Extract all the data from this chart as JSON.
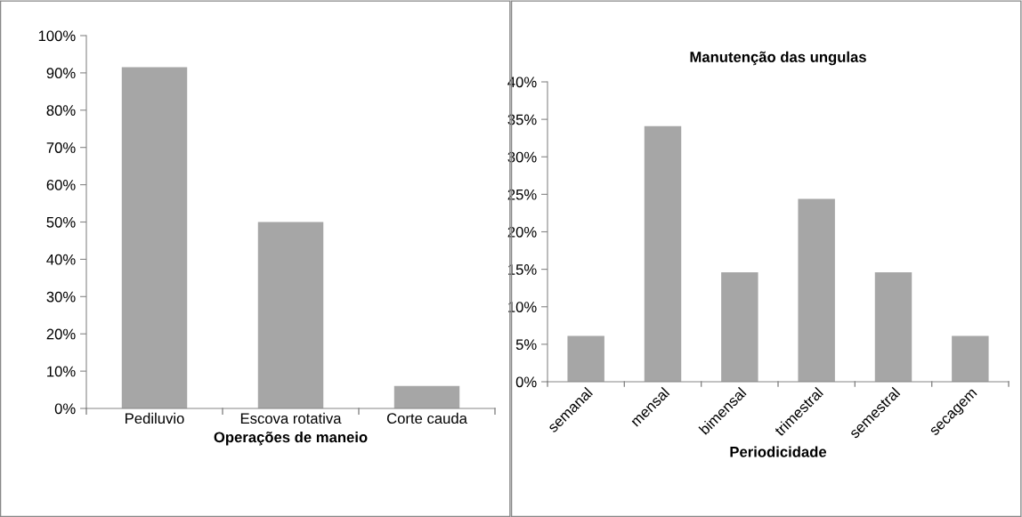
{
  "chart_data": [
    {
      "type": "bar",
      "xlabel": "Operações de maneio",
      "categories": [
        "Pediluvio",
        "Escova rotativa",
        "Corte cauda"
      ],
      "color": "#a6a6a6",
      "values": [
        91.5,
        50,
        6
      ],
      "ylim": [
        0,
        100
      ],
      "yticks": [
        {
          "value": 0,
          "label": "0%"
        },
        {
          "value": 10,
          "label": "10%"
        },
        {
          "value": 20,
          "label": "20%"
        },
        {
          "value": 30,
          "label": "30%"
        },
        {
          "value": 40,
          "label": "40%"
        },
        {
          "value": 50,
          "label": "50%"
        },
        {
          "value": 60,
          "label": "60%"
        },
        {
          "value": 70,
          "label": "70%"
        },
        {
          "value": 80,
          "label": "80%"
        },
        {
          "value": 90,
          "label": "90%"
        },
        {
          "value": 100,
          "label": "100%"
        }
      ],
      "grid": false,
      "legend": false
    },
    {
      "type": "bar",
      "title": "Manutenção das ungulas",
      "xlabel": "Periodicidade",
      "categories": [
        "semanal",
        "mensal",
        "bimensal",
        "trimestral",
        "semestral",
        "secagem"
      ],
      "color": "#a6a6a6",
      "values": [
        6.1,
        34.1,
        14.6,
        24.4,
        14.6,
        6.1
      ],
      "ylim": [
        0,
        40
      ],
      "yticks": [
        {
          "value": 0,
          "label": "0%"
        },
        {
          "value": 5,
          "label": "5%"
        },
        {
          "value": 10,
          "label": "10%"
        },
        {
          "value": 15,
          "label": "15%"
        },
        {
          "value": 20,
          "label": "20%"
        },
        {
          "value": 25,
          "label": "25%"
        },
        {
          "value": 30,
          "label": "30%"
        },
        {
          "value": 35,
          "label": "35%"
        },
        {
          "value": 40,
          "label": "40%"
        }
      ],
      "grid": false,
      "legend": false
    }
  ]
}
